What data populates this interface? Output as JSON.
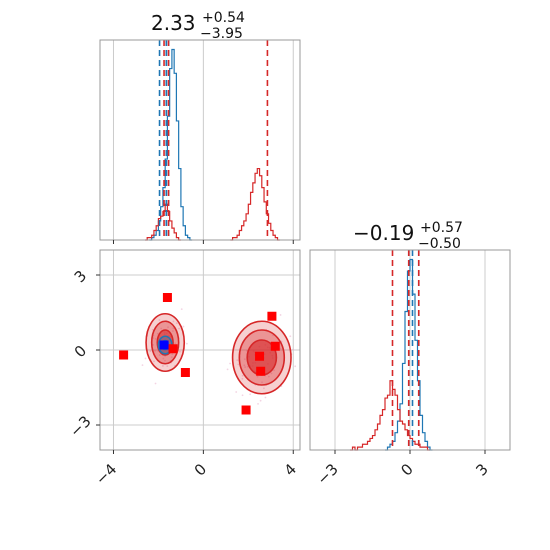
{
  "chart_data": {
    "type": "corner",
    "params": [
      {
        "title_value": "2.33",
        "title_plus": "+0.54",
        "title_minus": "−3.95",
        "range": [
          -4.6,
          4.3
        ],
        "ticks": [
          -4,
          0,
          4
        ],
        "tick_labels": [
          "−4",
          "0",
          "4"
        ],
        "quantile_lines": [
          {
            "value": -1.95,
            "color": "#1f77b4"
          },
          {
            "value": -1.65,
            "color": "#1f77b4"
          },
          {
            "value": -1.55,
            "color": "#1f77b4"
          },
          {
            "value": -1.75,
            "color": "#d62728"
          },
          {
            "value": -1.55,
            "color": "#d62728"
          },
          {
            "value": 2.85,
            "color": "#d62728"
          }
        ]
      },
      {
        "title_value": "−0.19",
        "title_plus": "+0.57",
        "title_minus": "−0.50",
        "range": [
          -4.0,
          4.0
        ],
        "ticks": [
          -3,
          0,
          3
        ],
        "tick_labels": [
          "−3",
          "0",
          "3"
        ],
        "quantile_lines": [
          {
            "value": -0.05,
            "color": "#1f77b4"
          },
          {
            "value": 0.1,
            "color": "#1f77b4"
          },
          {
            "value": 0.35,
            "color": "#1f77b4"
          },
          {
            "value": -0.7,
            "color": "#d62728"
          },
          {
            "value": -0.05,
            "color": "#d62728"
          },
          {
            "value": 0.35,
            "color": "#d62728"
          }
        ]
      }
    ],
    "histograms": [
      {
        "param": 0,
        "series": [
          {
            "color": "#1f77b4",
            "bin_start": -2.4,
            "bin_width": 0.1,
            "counts": [
              0,
              1,
              2,
              4,
              8,
              14,
              22,
              34,
              52,
              72,
              80,
              70,
              50,
              30,
              14,
              6,
              2,
              1,
              0
            ]
          },
          {
            "color": "#d62728",
            "bin_start": -2.6,
            "bin_width": 0.1,
            "counts": [
              0,
              1,
              1,
              2,
              4,
              6,
              9,
              10,
              12,
              15,
              12,
              8,
              5,
              3,
              1,
              0
            ]
          },
          {
            "color": "#d62728",
            "bin_start": 1.2,
            "bin_width": 0.1,
            "counts": [
              0,
              1,
              1,
              2,
              4,
              6,
              8,
              11,
              15,
              20,
              24,
              28,
              30,
              27,
              22,
              16,
              11,
              7,
              4,
              2,
              1,
              0
            ]
          }
        ]
      },
      {
        "param": 1,
        "series": [
          {
            "color": "#1f77b4",
            "bin_start": -1.0,
            "bin_width": 0.1,
            "counts": [
              0,
              1,
              2,
              3,
              6,
              10,
              16,
              30,
              48,
              62,
              66,
              54,
              38,
              24,
              12,
              6,
              3,
              1,
              0
            ]
          },
          {
            "color": "#d62728",
            "bin_start": -2.4,
            "bin_width": 0.1,
            "counts": [
              0,
              1,
              0,
              1,
              1,
              2,
              2,
              3,
              4,
              5,
              7,
              9,
              12,
              14,
              18,
              19,
              24,
              21,
              19,
              14,
              10,
              9,
              7,
              5,
              4,
              3,
              2,
              2,
              1,
              1,
              1,
              0
            ]
          }
        ]
      }
    ],
    "scatter": {
      "x_param": 0,
      "y_param": 1,
      "x_range": [
        -4.6,
        4.3
      ],
      "y_range": [
        -4.0,
        4.0
      ],
      "x_ticks": [
        -4,
        0,
        4
      ],
      "y_ticks": [
        -3,
        0,
        3
      ],
      "y_tick_labels": [
        "3",
        "0",
        "−3"
      ],
      "contours": [
        {
          "cx": -1.7,
          "cy": 0.3,
          "rx": 0.85,
          "ry": 1.15,
          "fill": "#d62728",
          "opacity": 0.22,
          "stroke": "#d62728"
        },
        {
          "cx": -1.7,
          "cy": 0.3,
          "rx": 0.6,
          "ry": 0.85,
          "fill": "#d62728",
          "opacity": 0.35,
          "stroke": "#d62728"
        },
        {
          "cx": -1.7,
          "cy": 0.3,
          "rx": 0.35,
          "ry": 0.5,
          "fill": "#d62728",
          "opacity": 0.55,
          "stroke": "#d62728"
        },
        {
          "cx": 2.6,
          "cy": -0.3,
          "rx": 1.3,
          "ry": 1.45,
          "fill": "#d62728",
          "opacity": 0.22,
          "stroke": "#d62728"
        },
        {
          "cx": 2.6,
          "cy": -0.3,
          "rx": 1.0,
          "ry": 1.1,
          "fill": "#d62728",
          "opacity": 0.35,
          "stroke": "#d62728"
        },
        {
          "cx": 2.6,
          "cy": -0.3,
          "rx": 0.65,
          "ry": 0.7,
          "fill": "#d62728",
          "opacity": 0.6,
          "stroke": "#d62728"
        },
        {
          "cx": -1.7,
          "cy": 0.2,
          "rx": 0.3,
          "ry": 0.35,
          "fill": "#1f77b4",
          "opacity": 0.35,
          "stroke": "#1f77b4"
        },
        {
          "cx": -1.7,
          "cy": 0.2,
          "rx": 0.15,
          "ry": 0.18,
          "fill": "#1f77b4",
          "opacity": 0.6,
          "stroke": "#1f77b4"
        }
      ],
      "markers": [
        {
          "x": -1.6,
          "y": 2.1,
          "color": "#ff0000"
        },
        {
          "x": 3.05,
          "y": 1.35,
          "color": "#ff0000"
        },
        {
          "x": -3.55,
          "y": -0.2,
          "color": "#ff0000"
        },
        {
          "x": -0.8,
          "y": -0.9,
          "color": "#ff0000"
        },
        {
          "x": 3.2,
          "y": 0.15,
          "color": "#ff0000"
        },
        {
          "x": 2.5,
          "y": -0.25,
          "color": "#ff0000"
        },
        {
          "x": 2.55,
          "y": -0.85,
          "color": "#ff0000"
        },
        {
          "x": 1.9,
          "y": -2.4,
          "color": "#ff0000"
        },
        {
          "x": -1.35,
          "y": 0.05,
          "color": "#ff0000"
        },
        {
          "x": -1.75,
          "y": 0.2,
          "color": "#0000ff"
        }
      ]
    },
    "grid": true
  }
}
